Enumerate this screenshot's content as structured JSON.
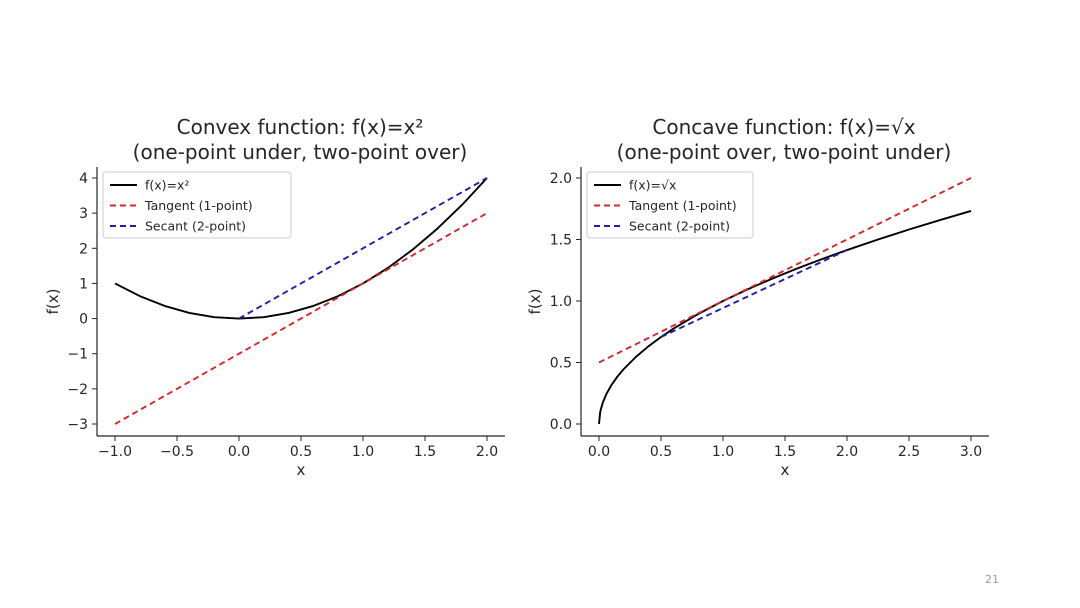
{
  "slide": {
    "page_number": "21"
  },
  "chart_data": [
    {
      "type": "line",
      "title": [
        "Convex function: f(x)=x²",
        "(one-point under, two-point over)"
      ],
      "xlabel": "x",
      "ylabel": "f(x)",
      "xlim": [
        -1.0,
        2.0
      ],
      "ylim": [
        -3.0,
        4.0
      ],
      "grid": false,
      "legend_position": "top-left",
      "xticks": [
        -1.0,
        -0.5,
        0.0,
        0.5,
        1.0,
        1.5,
        2.0
      ],
      "xtick_labels": [
        "−1.0",
        "−0.5",
        "0.0",
        "0.5",
        "1.0",
        "1.5",
        "2.0"
      ],
      "yticks": [
        -3,
        -2,
        -1,
        0,
        1,
        2,
        3,
        4
      ],
      "ytick_labels": [
        "−3",
        "−2",
        "−1",
        "0",
        "1",
        "2",
        "3",
        "4"
      ],
      "series": [
        {
          "name": "f(x)=x²",
          "style": "solid",
          "color": "#000000",
          "x": [
            -1.0,
            -0.8,
            -0.6,
            -0.4,
            -0.2,
            0.0,
            0.2,
            0.4,
            0.6,
            0.8,
            1.0,
            1.2,
            1.4,
            1.6,
            1.8,
            2.0
          ],
          "y": [
            1.0,
            0.64,
            0.36,
            0.16,
            0.04,
            0.0,
            0.04,
            0.16,
            0.36,
            0.64,
            1.0,
            1.44,
            1.96,
            2.56,
            3.24,
            4.0
          ]
        },
        {
          "name": "Tangent (1-point)",
          "style": "dashed",
          "color": "#d62728",
          "x": [
            -1.0,
            2.0
          ],
          "y": [
            -3.0,
            3.0
          ]
        },
        {
          "name": "Secant (2-point)",
          "style": "dashed",
          "color": "#1f1faa",
          "x": [
            0.0,
            2.0
          ],
          "y": [
            0.0,
            4.0
          ]
        }
      ]
    },
    {
      "type": "line",
      "title": [
        "Concave function: f(x)=√x",
        "(one-point over, two-point under)"
      ],
      "xlabel": "x",
      "ylabel": "f(x)",
      "xlim": [
        0.0,
        3.0
      ],
      "ylim": [
        0.0,
        2.0
      ],
      "grid": false,
      "legend_position": "top-left",
      "xticks": [
        0.0,
        0.5,
        1.0,
        1.5,
        2.0,
        2.5,
        3.0
      ],
      "xtick_labels": [
        "0.0",
        "0.5",
        "1.0",
        "1.5",
        "2.0",
        "2.5",
        "3.0"
      ],
      "yticks": [
        0.0,
        0.5,
        1.0,
        1.5,
        2.0
      ],
      "ytick_labels": [
        "0.0",
        "0.5",
        "1.0",
        "1.5",
        "2.0"
      ],
      "series": [
        {
          "name": "f(x)=√x",
          "style": "solid",
          "color": "#000000",
          "x": [
            0.0,
            0.01,
            0.03,
            0.06,
            0.1,
            0.15,
            0.2,
            0.3,
            0.4,
            0.5,
            0.6,
            0.8,
            1.0,
            1.2,
            1.4,
            1.6,
            1.8,
            2.0,
            2.25,
            2.5,
            2.75,
            3.0
          ],
          "y": [
            0.0,
            0.1,
            0.1732,
            0.2449,
            0.3162,
            0.3873,
            0.4472,
            0.5477,
            0.6325,
            0.7071,
            0.7746,
            0.8944,
            1.0,
            1.0954,
            1.1832,
            1.2649,
            1.3416,
            1.4142,
            1.5,
            1.5811,
            1.6583,
            1.7321
          ]
        },
        {
          "name": "Tangent (1-point)",
          "style": "dashed",
          "color": "#d62728",
          "x": [
            0.0,
            3.0
          ],
          "y": [
            0.5,
            2.0
          ]
        },
        {
          "name": "Secant (2-point)",
          "style": "dashed",
          "color": "#1f1faa",
          "x": [
            0.5,
            2.0
          ],
          "y": [
            0.7071,
            1.4142
          ]
        }
      ]
    }
  ]
}
